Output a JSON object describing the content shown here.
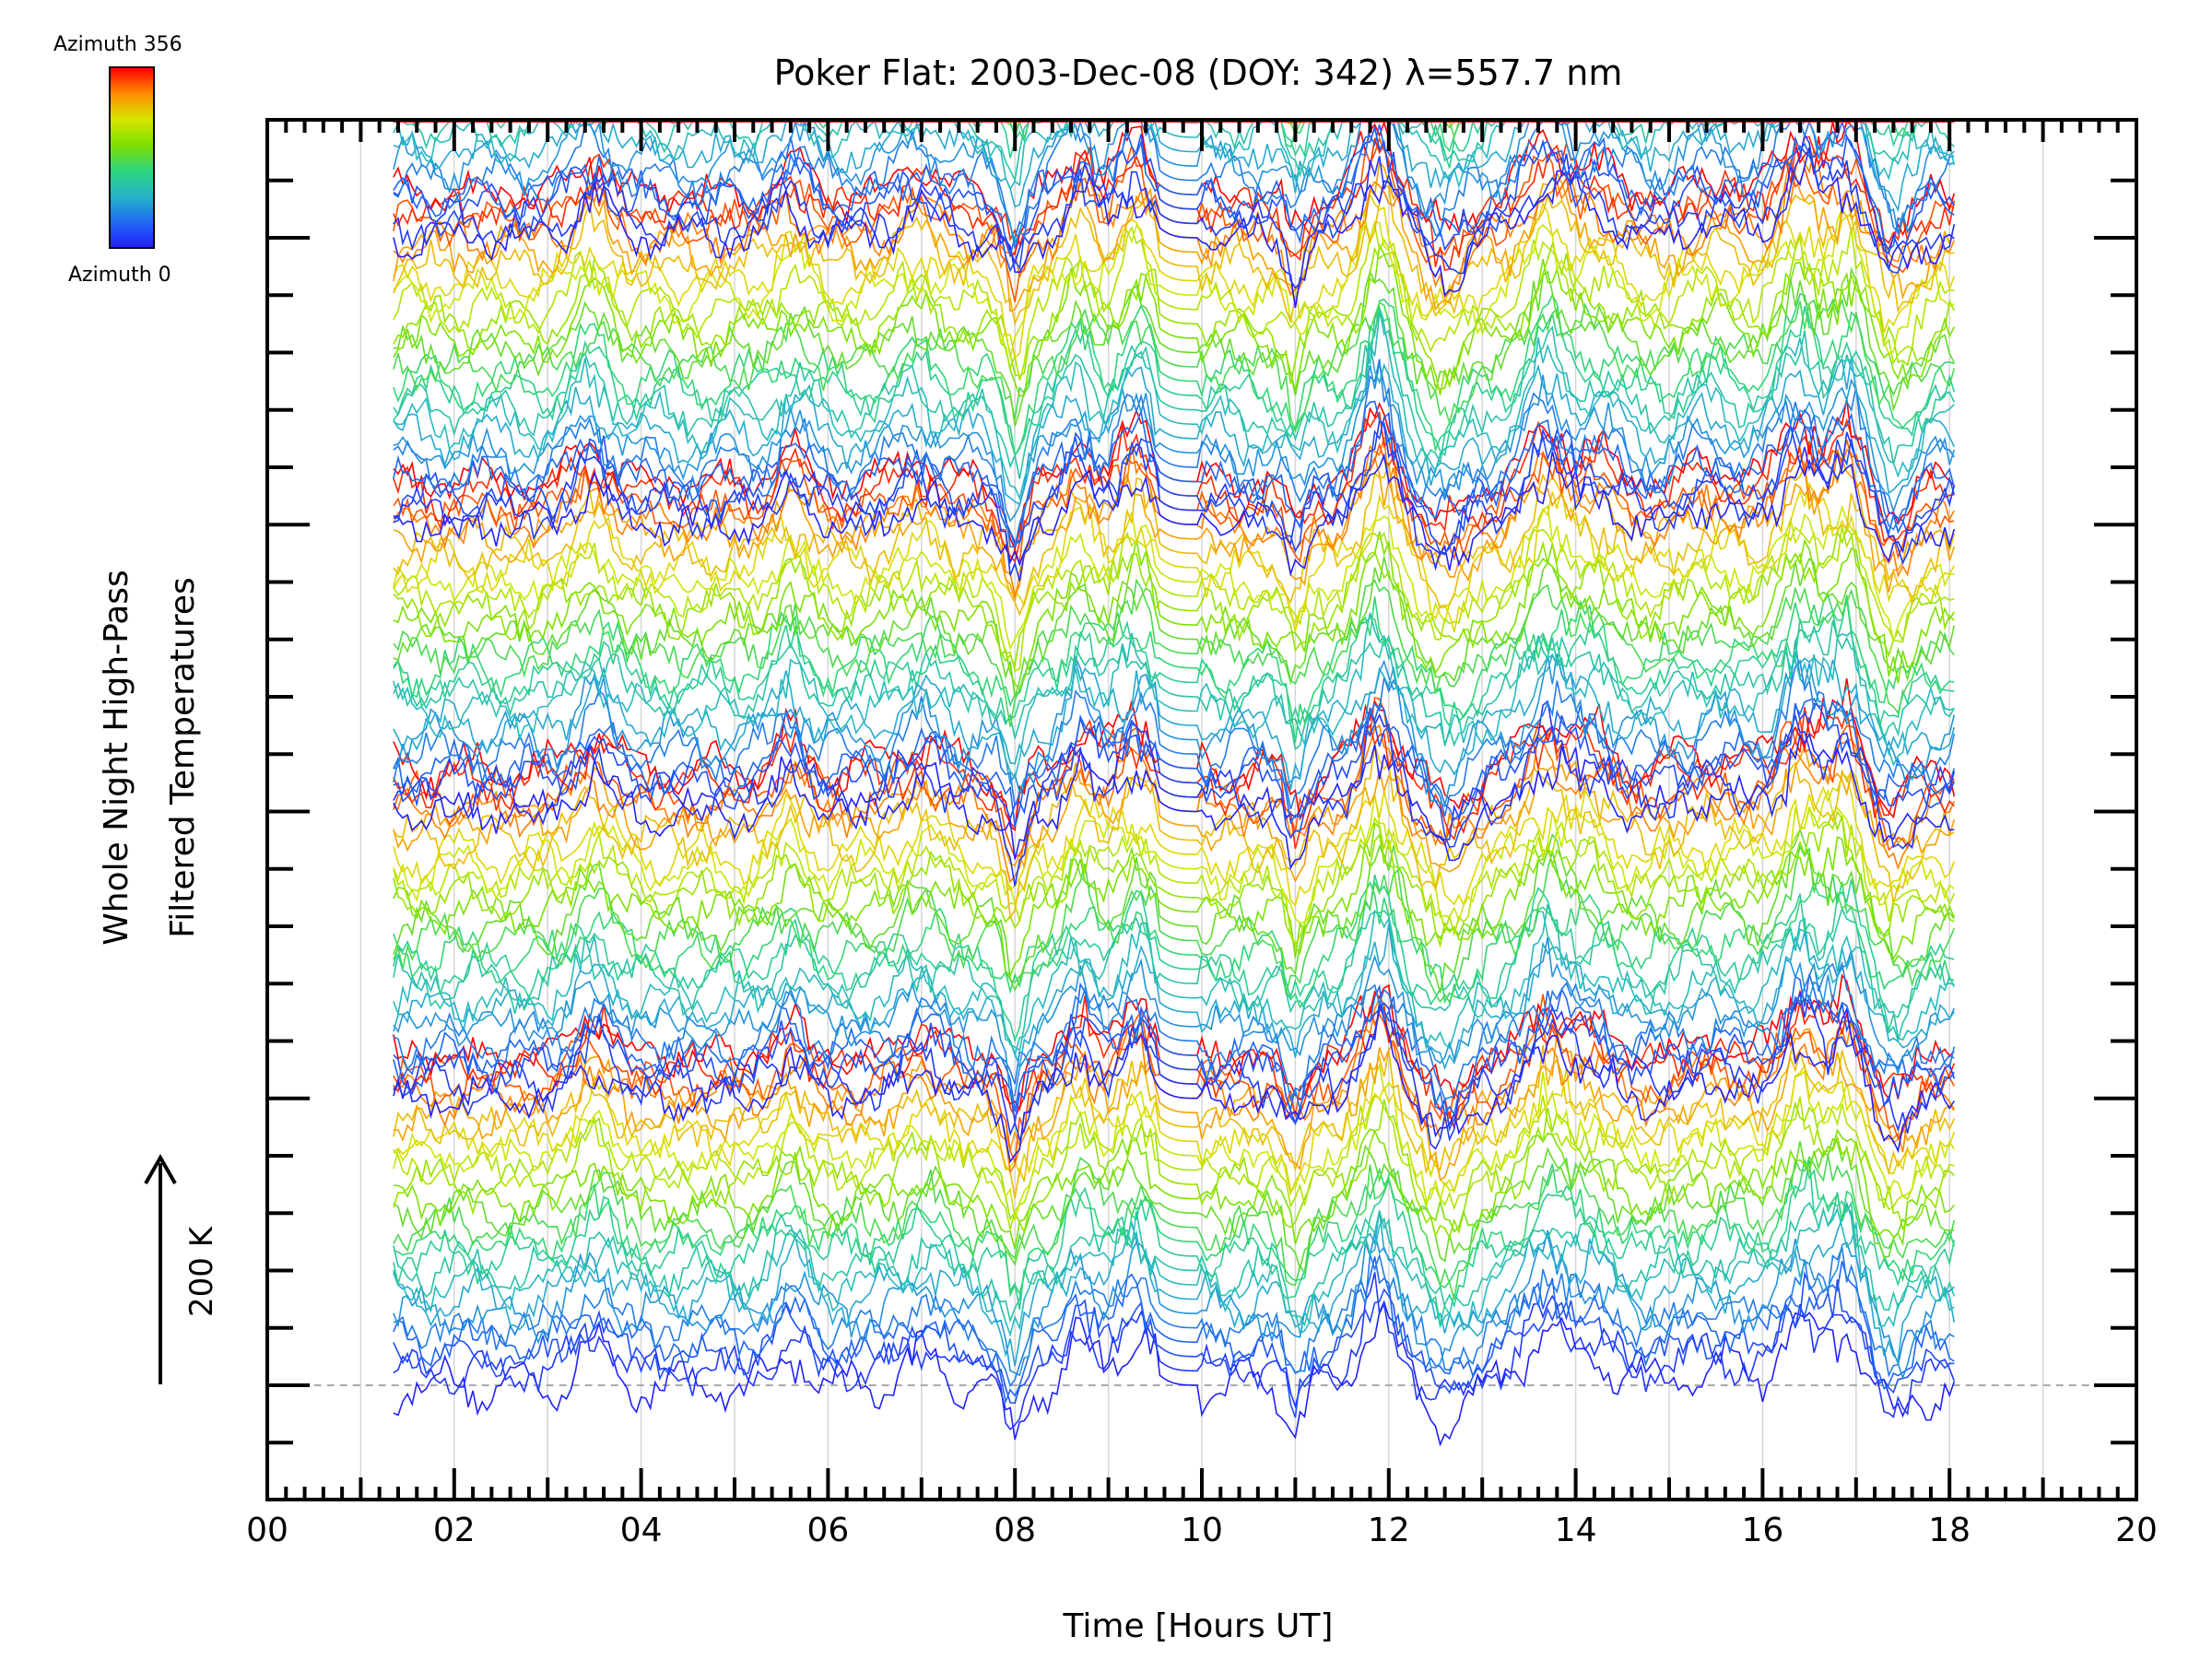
{
  "chart_data": {
    "type": "line",
    "title": "Poker Flat: 2003-Dec-08 (DOY: 342) λ=557.7 nm",
    "xlabel": "Time [Hours UT]",
    "ylabel_line1": "Whole Night High-Pass",
    "ylabel_line2": "Filtered Temperatures",
    "scale_label": "200 K",
    "xlim": [
      0,
      20
    ],
    "xtick_labels": [
      "00",
      "02",
      "04",
      "06",
      "08",
      "10",
      "12",
      "14",
      "16",
      "18",
      "20"
    ],
    "x_data_range": [
      1.35,
      18.1
    ],
    "grid": "vertical gridlines every 1 hour",
    "colorbar": {
      "top_label": "Azimuth 356",
      "bottom_label": "Azimuth 0",
      "colors": [
        "#ff0000",
        "#ff8c00",
        "#d7e600",
        "#7ee000",
        "#2fd57c",
        "#27b6c8",
        "#1f6cf0",
        "#2222ff"
      ]
    },
    "baseline_style": "dashed grey line at lowest trace level",
    "series_groups": 5,
    "traces_per_group": 24,
    "trace_offset_K": 25,
    "group_offset_K": 500,
    "y_tick_spacing_K": 50,
    "notes": "Stacked traces of high-pass filtered temperatures for each azimuth sector, offset vertically; vertical scale indicated by 200 K arrow."
  }
}
